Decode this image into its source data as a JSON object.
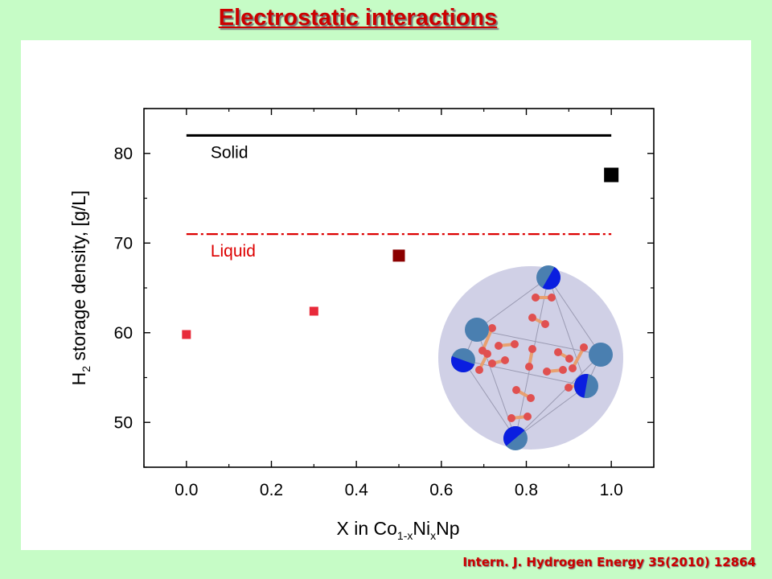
{
  "slide": {
    "title": "Electrostatic interactions",
    "citation": "Intern. J. Hydrogen Energy  35(2010) 12864"
  },
  "chart_data": {
    "type": "scatter",
    "title": "",
    "xlabel": {
      "text": "X in Co",
      "sub1": "1-x",
      "mid": "Ni",
      "sub2": "x",
      "tail": "Np"
    },
    "ylabel": {
      "text": "H",
      "sub": "2",
      "tail": " storage density, [g/L]"
    },
    "xlim": [
      -0.1,
      1.1
    ],
    "ylim": [
      45,
      85
    ],
    "x_ticks": [
      "0.0",
      "0.2",
      "0.4",
      "0.6",
      "0.8",
      "1.0"
    ],
    "y_ticks": [
      "50",
      "60",
      "70",
      "80"
    ],
    "grid": false,
    "points": [
      {
        "x": 0.0,
        "y": 59.8,
        "color": "#e82a3a",
        "size": "small"
      },
      {
        "x": 0.3,
        "y": 62.4,
        "color": "#e82a3a",
        "size": "small"
      },
      {
        "x": 0.5,
        "y": 68.6,
        "color": "#8b0000",
        "size": "medium"
      },
      {
        "x": 1.0,
        "y": 77.6,
        "color": "#000000",
        "size": "large"
      }
    ],
    "reference_lines": [
      {
        "name": "Solid",
        "y": 82,
        "x_range": [
          0.0,
          1.0
        ],
        "color": "#000000",
        "style": "solid"
      },
      {
        "name": "Liquid",
        "y": 71,
        "x_range": [
          0.0,
          1.0
        ],
        "color": "#dd0000",
        "style": "dash-dot"
      }
    ]
  },
  "inset": {
    "type": "molecular-cluster-illustration",
    "colors": {
      "sphere": "#d0d0e6",
      "metal": "#4a7fb0",
      "metal_highlight": "#0a1ee0",
      "hydrogen": "#e05050",
      "bond": "#e8a070"
    }
  }
}
